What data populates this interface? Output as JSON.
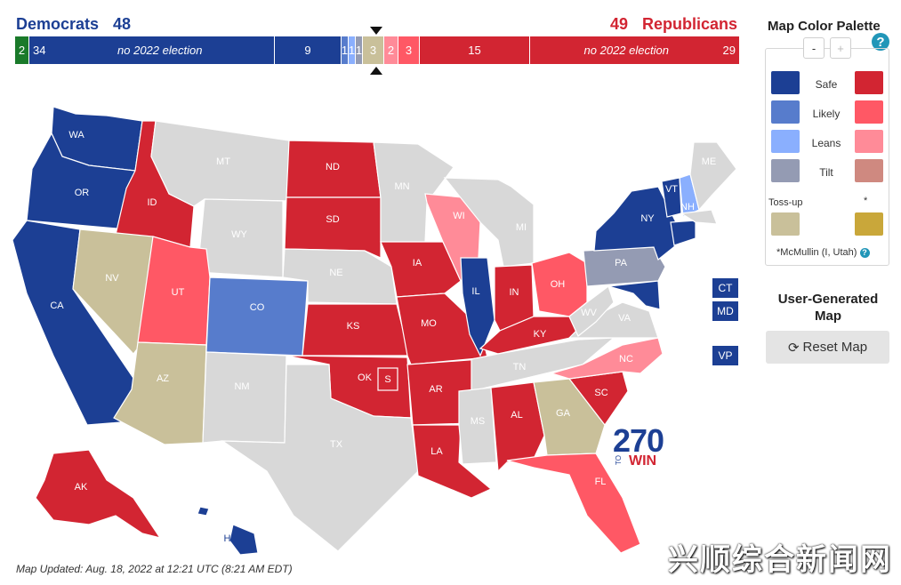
{
  "header": {
    "dem_label": "Democrats",
    "dem_total": "48",
    "rep_total": "49",
    "rep_label": "Republicans"
  },
  "bar": {
    "segments": [
      {
        "value": "2",
        "color": "#1a7a2a"
      },
      {
        "value": "34",
        "label": "no 2022 election",
        "color": "#1c3f94"
      },
      {
        "value": "9",
        "color": "#1c3f94"
      },
      {
        "value": "1",
        "color": "#577ccc"
      },
      {
        "value": "1",
        "color": "#8aaffe"
      },
      {
        "value": "1",
        "color": "#949bb3"
      },
      {
        "value": "3",
        "color": "#c9c09a"
      },
      {
        "value": "2",
        "color": "#ff8b98"
      },
      {
        "value": "3",
        "color": "#ff5865"
      },
      {
        "value": "15",
        "color": "#d22532"
      },
      {
        "value": "29",
        "label": "no 2022 election",
        "color": "#d22532"
      }
    ]
  },
  "map": {
    "states": {
      "WA": "WA",
      "OR": "OR",
      "CA": "CA",
      "ID": "ID",
      "NV": "NV",
      "MT": "MT",
      "WY": "WY",
      "UT": "UT",
      "AZ": "AZ",
      "CO": "CO",
      "NM": "NM",
      "ND": "ND",
      "SD": "SD",
      "NE": "NE",
      "KS": "KS",
      "OK": "OK",
      "TX": "TX",
      "MN": "MN",
      "IA": "IA",
      "MO": "MO",
      "AR": "AR",
      "LA": "LA",
      "WI": "WI",
      "IL": "IL",
      "MI": "MI",
      "IN": "IN",
      "OH": "OH",
      "KY": "KY",
      "TN": "TN",
      "MS": "MS",
      "AL": "AL",
      "GA": "GA",
      "FL": "FL",
      "SC": "SC",
      "NC": "NC",
      "VA": "VA",
      "WV": "WV",
      "PA": "PA",
      "NY": "NY",
      "VT": "VT",
      "NH": "NH",
      "ME": "ME",
      "MD": "MD",
      "CT": "CT",
      "AK": "AK",
      "HI": "HI",
      "S": "S"
    },
    "small_states": {
      "ct": "CT",
      "md": "MD",
      "vp": "VP"
    },
    "colors": {
      "safe_d": "#1c3f94",
      "likely_d": "#577ccc",
      "leans_d": "#8aaffe",
      "tilt_d": "#949bb3",
      "safe_r": "#d22532",
      "likely_r": "#ff5865",
      "leans_r": "#ff8b98",
      "tilt_r": "#cf8980",
      "tossup": "#c9c09a",
      "mcmullin": "#c9a73a",
      "none": "#d8d8d8"
    }
  },
  "logo": {
    "number": "270",
    "to": "TO",
    "win": "WIN"
  },
  "footer": {
    "updated": "Map Updated: Aug. 18, 2022 at 12:21 UTC (8:21 AM EDT)"
  },
  "palette": {
    "title": "Map Color Palette",
    "help": "?",
    "minus": "-",
    "plus": "+",
    "rows": [
      {
        "label": "Safe",
        "left": "#1c3f94",
        "right": "#d22532"
      },
      {
        "label": "Likely",
        "left": "#577ccc",
        "right": "#ff5865"
      },
      {
        "label": "Leans",
        "left": "#8aaffe",
        "right": "#ff8b98"
      },
      {
        "label": "Tilt",
        "left": "#949bb3",
        "right": "#cf8980"
      }
    ],
    "tossup_label": "Toss-up",
    "star_label": "*",
    "mcmullin_note": "*McMullin (I, Utah)",
    "note_help": "?"
  },
  "user_generated": {
    "title": "User-Generated Map",
    "reset_label": "Reset Map",
    "reset_icon": "refresh-icon"
  },
  "watermark": "兴顺综合新闻网"
}
